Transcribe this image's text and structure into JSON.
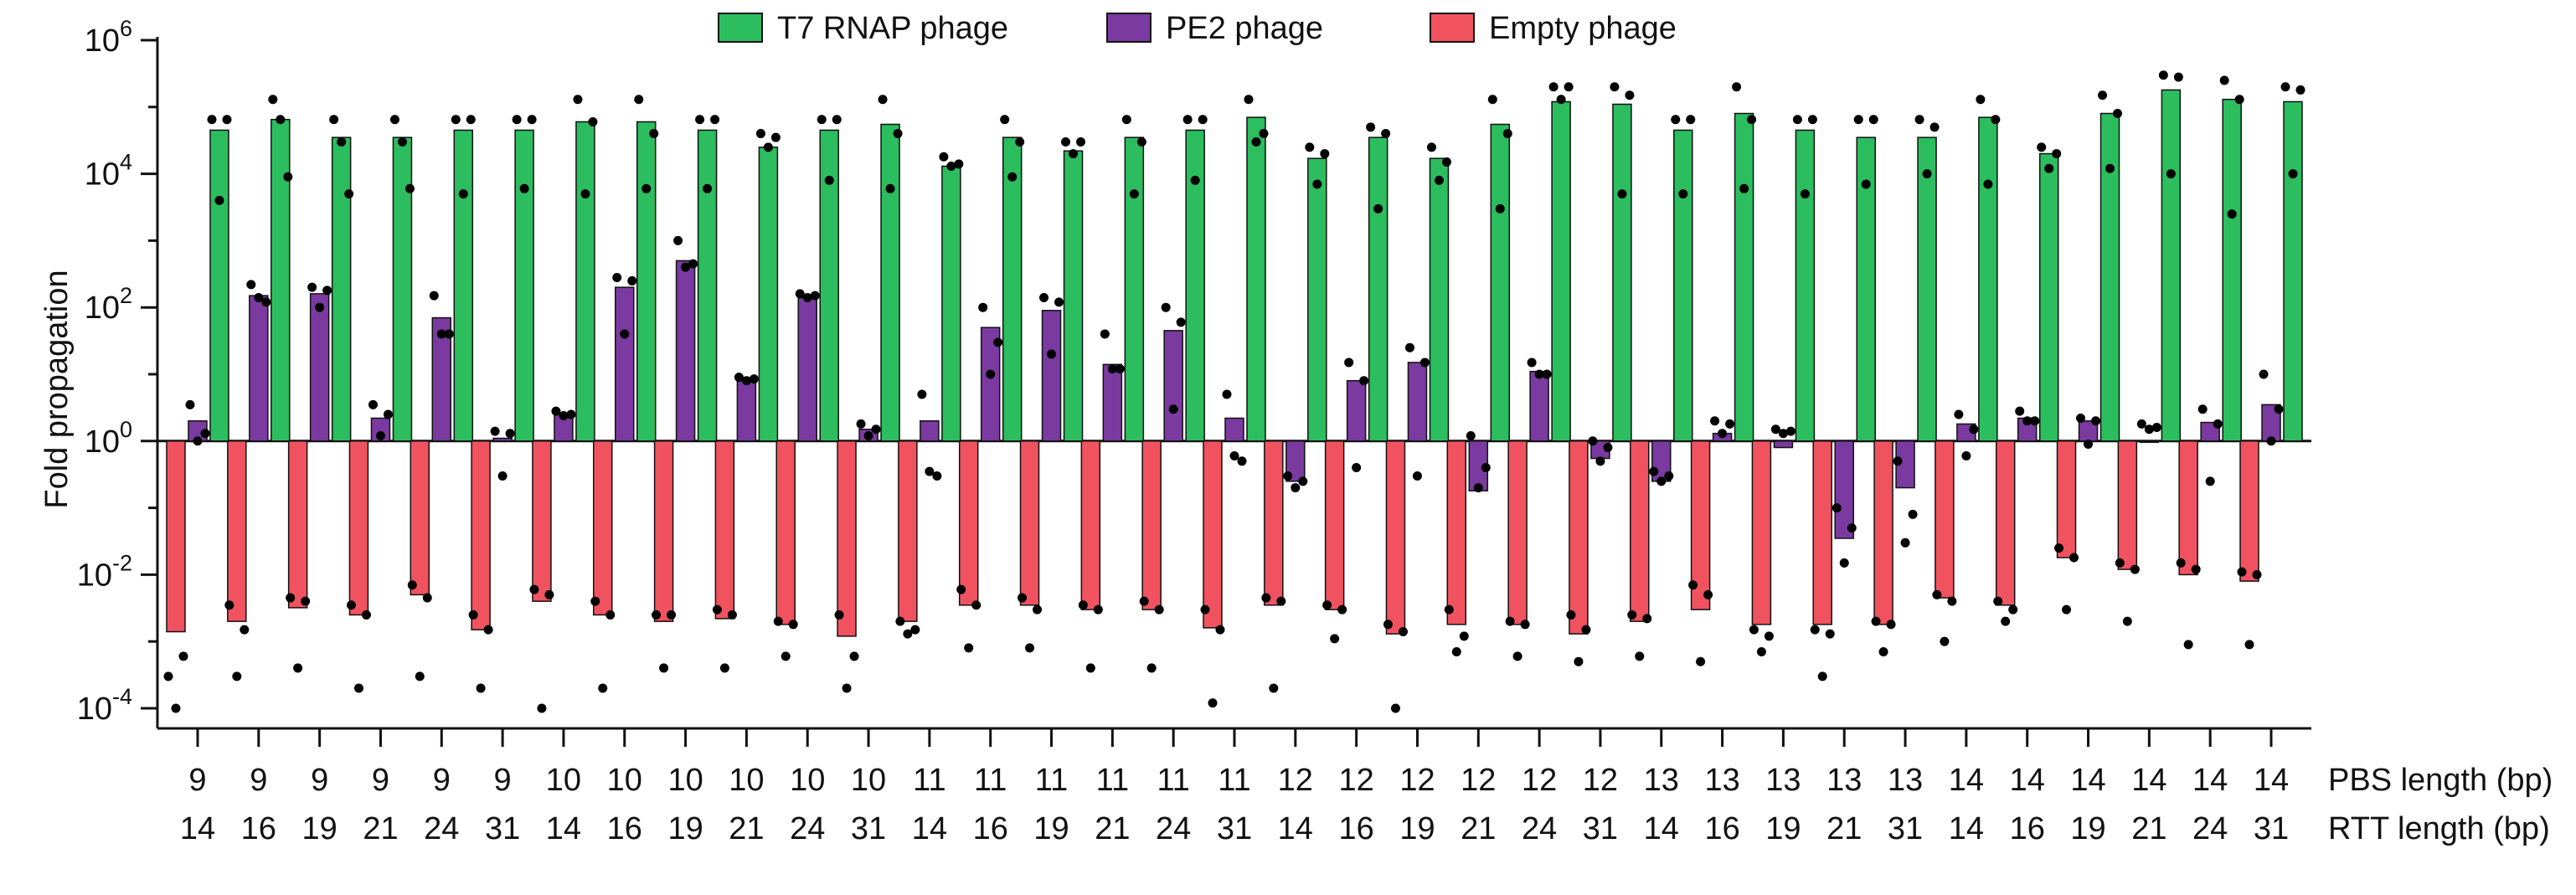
{
  "chart_data": {
    "type": "bar",
    "ylabel": "Fold propagation",
    "yscale": "log",
    "ylim": [
      5e-05,
      1000000
    ],
    "baseline": 1,
    "yticks": [
      {
        "value": 1000000,
        "base": "10",
        "exp": "6"
      },
      {
        "value": 10000,
        "base": "10",
        "exp": "4"
      },
      {
        "value": 100,
        "base": "10",
        "exp": "2"
      },
      {
        "value": 1,
        "base": "10",
        "exp": "0"
      },
      {
        "value": 0.01,
        "base": "10",
        "exp": "-2"
      },
      {
        "value": 0.0001,
        "base": "10",
        "exp": "-4"
      }
    ],
    "category_rows": [
      {
        "label": "PBS length (bp)",
        "values": [
          "9",
          "9",
          "9",
          "9",
          "9",
          "9",
          "10",
          "10",
          "10",
          "10",
          "10",
          "10",
          "11",
          "11",
          "11",
          "11",
          "11",
          "11",
          "12",
          "12",
          "12",
          "12",
          "12",
          "12",
          "13",
          "13",
          "13",
          "13",
          "13",
          "14",
          "14",
          "14",
          "14",
          "14",
          "14"
        ]
      },
      {
        "label": "RTT length (bp)",
        "values": [
          "14",
          "16",
          "19",
          "21",
          "24",
          "31",
          "14",
          "16",
          "19",
          "21",
          "24",
          "31",
          "14",
          "16",
          "19",
          "21",
          "24",
          "31",
          "14",
          "16",
          "19",
          "21",
          "24",
          "31",
          "14",
          "16",
          "19",
          "21",
          "31",
          "14",
          "16",
          "19",
          "21",
          "24",
          "31"
        ]
      }
    ],
    "legend": {
      "position": "top"
    },
    "series": [
      {
        "name": "Empty phage",
        "color": "#f0535f",
        "values": [
          0.0014,
          0.002,
          0.0032,
          0.0025,
          0.005,
          0.0015,
          0.004,
          0.0025,
          0.002,
          0.0022,
          0.0018,
          0.0012,
          0.002,
          0.0035,
          0.0035,
          0.003,
          0.003,
          0.0016,
          0.0035,
          0.003,
          0.0013,
          0.0018,
          0.0018,
          0.0013,
          0.002,
          0.003,
          0.0018,
          0.0018,
          0.0018,
          0.0045,
          0.0035,
          0.018,
          0.012,
          0.01,
          0.008
        ],
        "points": [
          [
            0.0003,
            0.0006,
            0.0001
          ],
          [
            0.0035,
            0.0015,
            0.0003
          ],
          [
            0.0045,
            0.004,
            0.0004
          ],
          [
            0.0035,
            0.0025,
            0.0002
          ],
          [
            0.007,
            0.0045,
            0.0003
          ],
          [
            0.0025,
            0.0015,
            0.0002
          ],
          [
            0.006,
            0.005,
            0.0001
          ],
          [
            0.004,
            0.0025,
            0.0002
          ],
          [
            0.0025,
            0.0025,
            0.0004
          ],
          [
            0.003,
            0.0025,
            0.0004
          ],
          [
            0.002,
            0.0018,
            0.0006
          ],
          [
            0.0025,
            0.0006,
            0.0002
          ],
          [
            0.002,
            0.0015,
            0.0013
          ],
          [
            0.006,
            0.0035,
            0.0008
          ],
          [
            0.0045,
            0.003,
            0.0008
          ],
          [
            0.0035,
            0.003,
            0.0004
          ],
          [
            0.004,
            0.003,
            0.0004
          ],
          [
            0.003,
            0.0015,
            0.00012
          ],
          [
            0.0045,
            0.004,
            0.0002
          ],
          [
            0.0035,
            0.003,
            0.0011
          ],
          [
            0.0018,
            0.0014,
            0.0001
          ],
          [
            0.003,
            0.0012,
            0.0007
          ],
          [
            0.002,
            0.0018,
            0.0006
          ],
          [
            0.0025,
            0.0015,
            0.0005
          ],
          [
            0.0025,
            0.0022,
            0.0006
          ],
          [
            0.007,
            0.005,
            0.0005
          ],
          [
            0.0015,
            0.0012,
            0.0007
          ],
          [
            0.0015,
            0.0013,
            0.0003
          ],
          [
            0.002,
            0.0018,
            0.0007
          ],
          [
            0.005,
            0.004,
            0.001
          ],
          [
            0.004,
            0.003,
            0.002
          ],
          [
            0.025,
            0.018,
            0.003
          ],
          [
            0.015,
            0.012,
            0.002
          ],
          [
            0.015,
            0.012,
            0.0009
          ],
          [
            0.011,
            0.01,
            0.0009
          ]
        ]
      },
      {
        "name": "PE2 phage",
        "color": "#7b3aa0",
        "values": [
          2,
          150,
          160,
          2.2,
          70,
          1.1,
          2.5,
          200,
          500,
          8,
          140,
          1.5,
          2,
          50,
          90,
          14,
          45,
          2.2,
          0.25,
          8,
          15,
          0.18,
          11,
          0.55,
          0.25,
          1.3,
          0.8,
          0.035,
          0.2,
          1.8,
          2.2,
          2,
          1,
          1.9,
          3.5
        ],
        "points": [
          [
            3.5,
            1.3,
            1
          ],
          [
            220,
            120,
            140
          ],
          [
            200,
            180,
            100
          ],
          [
            3.5,
            2.5,
            1.2
          ],
          [
            150,
            40,
            40
          ],
          [
            1.4,
            1.3,
            0.3
          ],
          [
            2.8,
            2.5,
            2.4
          ],
          [
            280,
            250,
            40
          ],
          [
            1000,
            450,
            400
          ],
          [
            9,
            8.5,
            8
          ],
          [
            160,
            150,
            140
          ],
          [
            1.8,
            1.5,
            1.2
          ],
          [
            5,
            0.3,
            0.35
          ],
          [
            100,
            30,
            10
          ],
          [
            140,
            120,
            20
          ],
          [
            40,
            12,
            12
          ],
          [
            100,
            60,
            3
          ],
          [
            5,
            0.5,
            0.6
          ],
          [
            0.3,
            0.25,
            0.2
          ],
          [
            15,
            8,
            0.4
          ],
          [
            25,
            15,
            0.3
          ],
          [
            1.2,
            0.4,
            0.2
          ],
          [
            15,
            10,
            10
          ],
          [
            1,
            0.8,
            0.5
          ],
          [
            0.35,
            0.3,
            0.25
          ],
          [
            2,
            1.8,
            1.3
          ],
          [
            1.5,
            1.4,
            1.3
          ],
          [
            0.1,
            0.05,
            0.015
          ],
          [
            0.5,
            0.08,
            0.03
          ],
          [
            2.5,
            1.5,
            0.6
          ],
          [
            2.8,
            2,
            2
          ],
          [
            2.2,
            2,
            0.9
          ],
          [
            1.8,
            1.6,
            1.5
          ],
          [
            3,
            1.8,
            0.25
          ],
          [
            10,
            3,
            1
          ]
        ]
      },
      {
        "name": "T7 RNAP phage",
        "color": "#2bbd5e",
        "values": [
          45000,
          65000,
          35000,
          35000,
          45000,
          45000,
          60000,
          60000,
          45000,
          25000,
          45000,
          55000,
          13000,
          35000,
          22000,
          35000,
          45000,
          70000,
          17000,
          35000,
          17000,
          55000,
          120000,
          110000,
          45000,
          80000,
          45000,
          35000,
          35000,
          70000,
          20000,
          80000,
          180000,
          130000,
          120000
        ],
        "points": [
          [
            65000,
            65000,
            4000
          ],
          [
            130000,
            9000,
            65000
          ],
          [
            65000,
            5000,
            30000
          ],
          [
            65000,
            6000,
            30000
          ],
          [
            65000,
            65000,
            5000
          ],
          [
            65000,
            65000,
            6000
          ],
          [
            130000,
            60000,
            5000
          ],
          [
            130000,
            40000,
            6000
          ],
          [
            65000,
            65000,
            6000
          ],
          [
            40000,
            35000,
            25000
          ],
          [
            65000,
            65000,
            8000
          ],
          [
            130000,
            40000,
            6000
          ],
          [
            18000,
            14000,
            13000
          ],
          [
            65000,
            30000,
            9000
          ],
          [
            30000,
            30000,
            20000
          ],
          [
            65000,
            30000,
            5000
          ],
          [
            65000,
            65000,
            8000
          ],
          [
            130000,
            40000,
            30000
          ],
          [
            25000,
            20000,
            7000
          ],
          [
            50000,
            40000,
            3000
          ],
          [
            25000,
            15000,
            8000
          ],
          [
            130000,
            40000,
            3000
          ],
          [
            200000,
            200000,
            130000
          ],
          [
            200000,
            150000,
            5000
          ],
          [
            65000,
            65000,
            5000
          ],
          [
            200000,
            65000,
            6000
          ],
          [
            65000,
            65000,
            5000
          ],
          [
            65000,
            65000,
            7000
          ],
          [
            65000,
            50000,
            10000
          ],
          [
            130000,
            65000,
            7000
          ],
          [
            25000,
            20000,
            12000
          ],
          [
            150000,
            80000,
            12000
          ],
          [
            300000,
            280000,
            10000
          ],
          [
            250000,
            130000,
            2500
          ],
          [
            200000,
            180000,
            10000
          ]
        ]
      }
    ]
  }
}
